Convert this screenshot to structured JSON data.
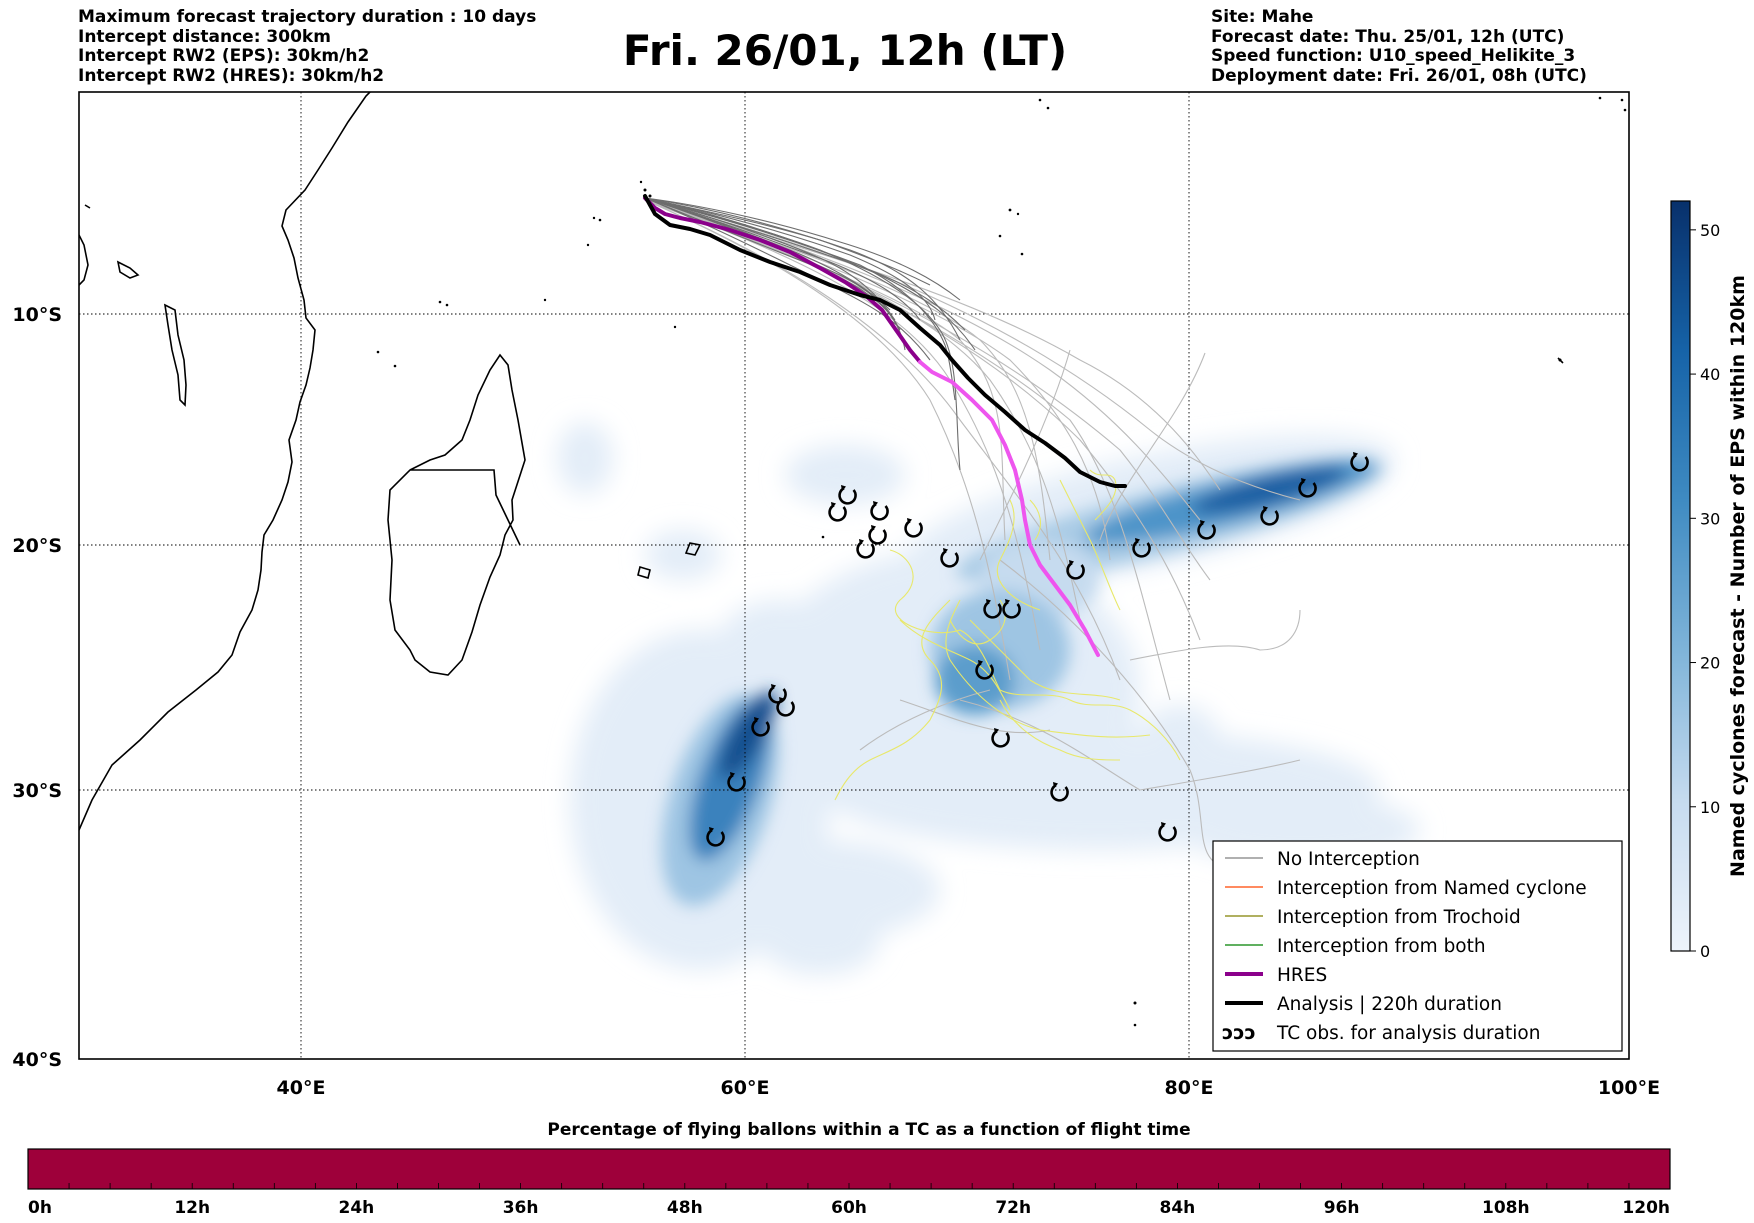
{
  "header": {
    "left_lines": [
      "Maximum forecast trajectory duration : 10 days",
      "Intercept distance: 300km",
      "Intercept RW2 (EPS):  30km/h2",
      "Intercept RW2 (HRES): 30km/h2"
    ],
    "title": "Fri. 26/01, 12h (LT)",
    "right_lines": [
      "Site: Mahe",
      "Forecast date: Thu. 25/01, 12h (UTC)",
      "Speed function: U10_speed_Helikite_3",
      "Deployment date: Fri. 26/01, 08h (UTC)"
    ]
  },
  "map": {
    "lat_labels": [
      "10°S",
      "20°S",
      "30°S",
      "40°S"
    ],
    "lon_labels": [
      "40°E",
      "60°E",
      "80°E",
      "100°E"
    ]
  },
  "legend": {
    "items": [
      {
        "label": "No Interception",
        "color": "#808080"
      },
      {
        "label": "Interception from Named cyclone",
        "color": "#ff4500"
      },
      {
        "label": "Interception from Trochoid",
        "color": "#808000"
      },
      {
        "label": "Interception from both",
        "color": "#008000"
      },
      {
        "label": "HRES",
        "color": "#8b008b"
      },
      {
        "label": "Analysis | 220h duration",
        "color": "#000000"
      },
      {
        "label": "TC obs. for analysis duration",
        "color": "#000000"
      }
    ],
    "tc_symbol": "ↄↄↄ"
  },
  "colorbar_right": {
    "label": "Named cyclones forecast - Number of EPS within 120km",
    "ticks": [
      "0",
      "10",
      "20",
      "30",
      "40",
      "50"
    ],
    "min": 0,
    "max": 52
  },
  "bottom_bar": {
    "title": "Percentage of flying ballons within a TC as a function of flight time",
    "ticks": [
      "0h",
      "12h",
      "24h",
      "36h",
      "48h",
      "60h",
      "72h",
      "84h",
      "96h",
      "108h",
      "120h"
    ],
    "fill_color": "#9e003a"
  },
  "colors": {
    "hres": "#8b008b",
    "hres_late": "#ee55ee",
    "analysis": "#000000",
    "trochoid": "#e8e86a",
    "ensemble_dark": "#555555",
    "ensemble_light": "#bbbbbb"
  }
}
